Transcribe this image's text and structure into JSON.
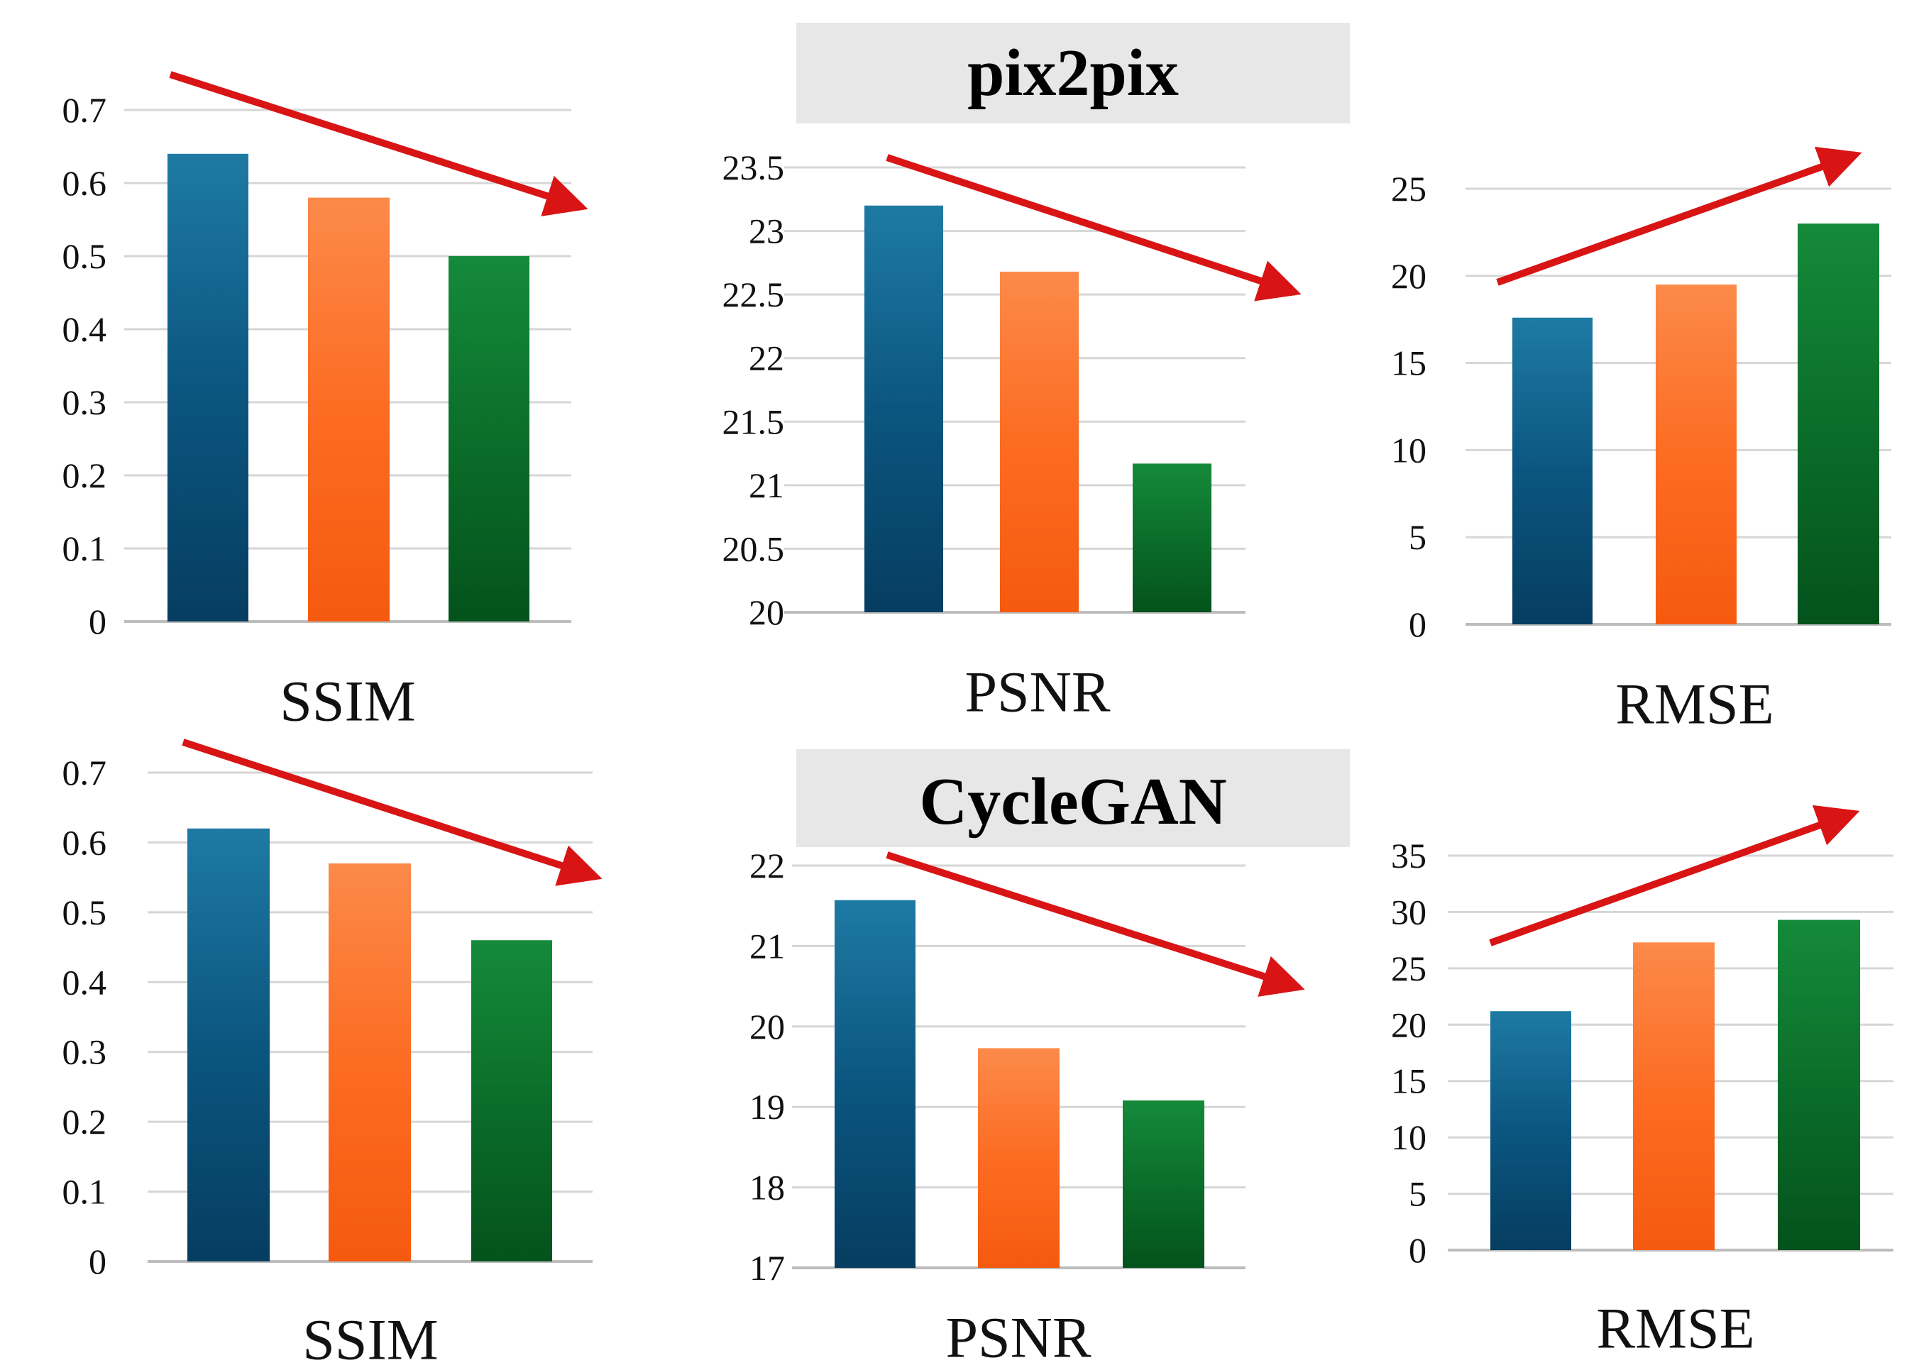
{
  "banners": {
    "top": "pix2pix",
    "bottom": "CycleGAN"
  },
  "colors": {
    "series": [
      "#0d5c86",
      "#fb6a1f",
      "#0b6e2a"
    ],
    "arrow": "#d81414",
    "grid": "#d6d6d6",
    "banner_bg": "#e7e7e7"
  },
  "chart_data": [
    {
      "type": "bar",
      "group": "pix2pix",
      "xlabel": "SSIM",
      "values": [
        0.64,
        0.58,
        0.5
      ],
      "ylim": [
        0,
        0.7
      ],
      "ticks": [
        "0",
        "0.1",
        "0.2",
        "0.3",
        "0.4",
        "0.5",
        "0.6",
        "0.7"
      ],
      "trend": "down"
    },
    {
      "type": "bar",
      "group": "pix2pix",
      "xlabel": "PSNR",
      "values": [
        23.2,
        22.68,
        21.17
      ],
      "ylim": [
        20,
        23.5
      ],
      "ticks": [
        "20",
        "20.5",
        "21",
        "21.5",
        "22",
        "22.5",
        "23",
        "23.5"
      ],
      "trend": "down"
    },
    {
      "type": "bar",
      "group": "pix2pix",
      "xlabel": "RMSE",
      "values": [
        17.6,
        19.5,
        23.0
      ],
      "ylim": [
        0,
        25
      ],
      "ticks": [
        "0",
        "5",
        "10",
        "15",
        "20",
        "25"
      ],
      "trend": "up"
    },
    {
      "type": "bar",
      "group": "CycleGAN",
      "xlabel": "SSIM",
      "values": [
        0.62,
        0.57,
        0.46
      ],
      "ylim": [
        0,
        0.7
      ],
      "ticks": [
        "0",
        "0.1",
        "0.2",
        "0.3",
        "0.4",
        "0.5",
        "0.6",
        "0.7"
      ],
      "trend": "down"
    },
    {
      "type": "bar",
      "group": "CycleGAN",
      "xlabel": "PSNR",
      "values": [
        21.57,
        19.73,
        19.08
      ],
      "ylim": [
        17,
        22
      ],
      "ticks": [
        "17",
        "18",
        "19",
        "20",
        "21",
        "22"
      ],
      "trend": "down"
    },
    {
      "type": "bar",
      "group": "CycleGAN",
      "xlabel": "RMSE",
      "values": [
        21.2,
        27.3,
        29.3
      ],
      "ylim": [
        0,
        35
      ],
      "ticks": [
        "0",
        "5",
        "10",
        "15",
        "20",
        "25",
        "30",
        "35"
      ],
      "trend": "up"
    }
  ]
}
